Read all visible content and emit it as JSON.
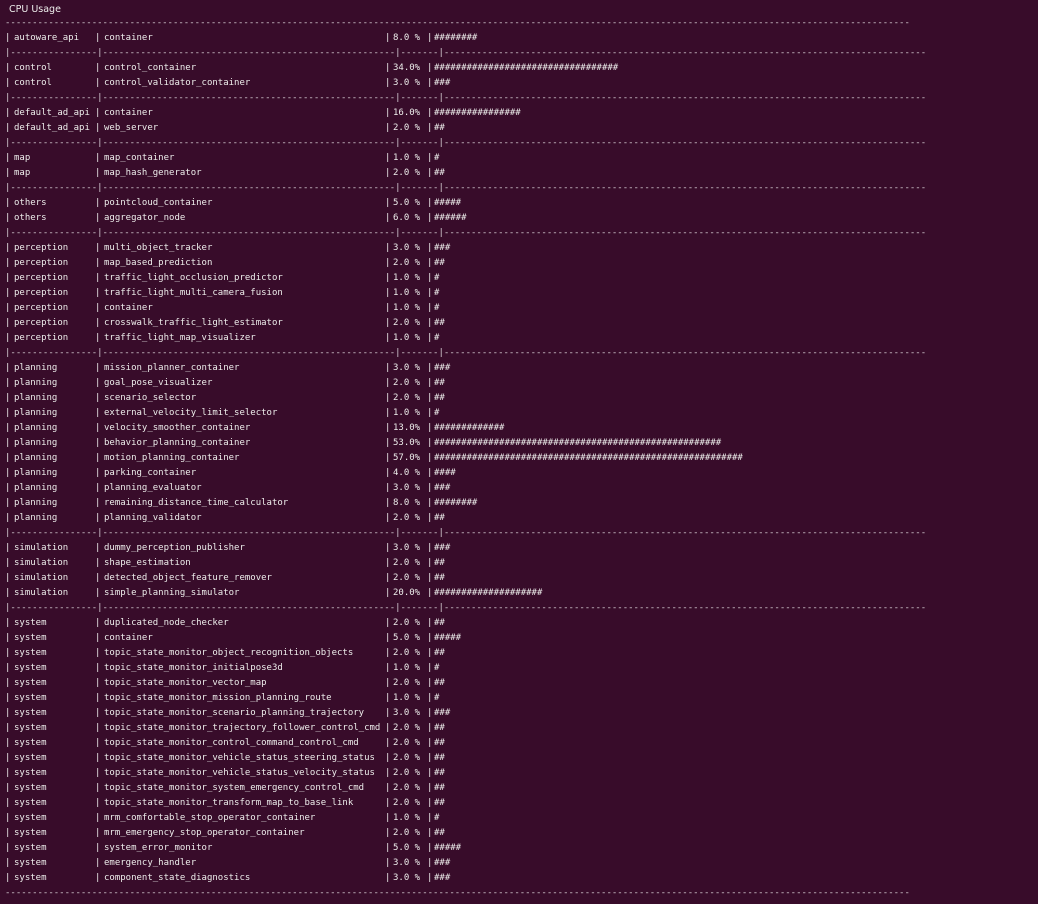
{
  "window": {
    "title": "CPU Usage"
  },
  "separator_full": "-----------------------------------------------------------------------------------------------------------------------------------------------------------------------",
  "separator_group": "|----------------|------------------------------------------------------|-------|-----------------------------------------------------------------------------------------",
  "groups": [
    {
      "rows": [
        {
          "group": "autoware_api",
          "name": "container",
          "pct": "8.0 %",
          "bar": "########"
        }
      ]
    },
    {
      "rows": [
        {
          "group": "control",
          "name": "control_container",
          "pct": "34.0%",
          "bar": "##################################"
        },
        {
          "group": "control",
          "name": "control_validator_container",
          "pct": "3.0 %",
          "bar": "###"
        }
      ]
    },
    {
      "rows": [
        {
          "group": "default_ad_api",
          "name": "container",
          "pct": "16.0%",
          "bar": "################"
        },
        {
          "group": "default_ad_api",
          "name": "web_server",
          "pct": "2.0 %",
          "bar": "##"
        }
      ]
    },
    {
      "rows": [
        {
          "group": "map",
          "name": "map_container",
          "pct": "1.0 %",
          "bar": "#"
        },
        {
          "group": "map",
          "name": "map_hash_generator",
          "pct": "2.0 %",
          "bar": "##"
        }
      ]
    },
    {
      "rows": [
        {
          "group": "others",
          "name": "pointcloud_container",
          "pct": "5.0 %",
          "bar": "#####"
        },
        {
          "group": "others",
          "name": "aggregator_node",
          "pct": "6.0 %",
          "bar": "######"
        }
      ]
    },
    {
      "rows": [
        {
          "group": "perception",
          "name": "multi_object_tracker",
          "pct": "3.0 %",
          "bar": "###"
        },
        {
          "group": "perception",
          "name": "map_based_prediction",
          "pct": "2.0 %",
          "bar": "##"
        },
        {
          "group": "perception",
          "name": "traffic_light_occlusion_predictor",
          "pct": "1.0 %",
          "bar": "#"
        },
        {
          "group": "perception",
          "name": "traffic_light_multi_camera_fusion",
          "pct": "1.0 %",
          "bar": "#"
        },
        {
          "group": "perception",
          "name": "container",
          "pct": "1.0 %",
          "bar": "#"
        },
        {
          "group": "perception",
          "name": "crosswalk_traffic_light_estimator",
          "pct": "2.0 %",
          "bar": "##"
        },
        {
          "group": "perception",
          "name": "traffic_light_map_visualizer",
          "pct": "1.0 %",
          "bar": "#"
        }
      ]
    },
    {
      "rows": [
        {
          "group": "planning",
          "name": "mission_planner_container",
          "pct": "3.0 %",
          "bar": "###"
        },
        {
          "group": "planning",
          "name": "goal_pose_visualizer",
          "pct": "2.0 %",
          "bar": "##"
        },
        {
          "group": "planning",
          "name": "scenario_selector",
          "pct": "2.0 %",
          "bar": "##"
        },
        {
          "group": "planning",
          "name": "external_velocity_limit_selector",
          "pct": "1.0 %",
          "bar": "#"
        },
        {
          "group": "planning",
          "name": "velocity_smoother_container",
          "pct": "13.0%",
          "bar": "#############"
        },
        {
          "group": "planning",
          "name": "behavior_planning_container",
          "pct": "53.0%",
          "bar": "#####################################################"
        },
        {
          "group": "planning",
          "name": "motion_planning_container",
          "pct": "57.0%",
          "bar": "#########################################################"
        },
        {
          "group": "planning",
          "name": "parking_container",
          "pct": "4.0 %",
          "bar": "####"
        },
        {
          "group": "planning",
          "name": "planning_evaluator",
          "pct": "3.0 %",
          "bar": "###"
        },
        {
          "group": "planning",
          "name": "remaining_distance_time_calculator",
          "pct": "8.0 %",
          "bar": "########"
        },
        {
          "group": "planning",
          "name": "planning_validator",
          "pct": "2.0 %",
          "bar": "##"
        }
      ]
    },
    {
      "rows": [
        {
          "group": "simulation",
          "name": "dummy_perception_publisher",
          "pct": "3.0 %",
          "bar": "###"
        },
        {
          "group": "simulation",
          "name": "shape_estimation",
          "pct": "2.0 %",
          "bar": "##"
        },
        {
          "group": "simulation",
          "name": "detected_object_feature_remover",
          "pct": "2.0 %",
          "bar": "##"
        },
        {
          "group": "simulation",
          "name": "simple_planning_simulator",
          "pct": "20.0%",
          "bar": "####################"
        }
      ]
    },
    {
      "rows": [
        {
          "group": "system",
          "name": "duplicated_node_checker",
          "pct": "2.0 %",
          "bar": "##"
        },
        {
          "group": "system",
          "name": "container",
          "pct": "5.0 %",
          "bar": "#####"
        },
        {
          "group": "system",
          "name": "topic_state_monitor_object_recognition_objects",
          "pct": "2.0 %",
          "bar": "##"
        },
        {
          "group": "system",
          "name": "topic_state_monitor_initialpose3d",
          "pct": "1.0 %",
          "bar": "#"
        },
        {
          "group": "system",
          "name": "topic_state_monitor_vector_map",
          "pct": "2.0 %",
          "bar": "##"
        },
        {
          "group": "system",
          "name": "topic_state_monitor_mission_planning_route",
          "pct": "1.0 %",
          "bar": "#"
        },
        {
          "group": "system",
          "name": "topic_state_monitor_scenario_planning_trajectory",
          "pct": "3.0 %",
          "bar": "###"
        },
        {
          "group": "system",
          "name": "topic_state_monitor_trajectory_follower_control_cmd",
          "pct": "2.0 %",
          "bar": "##"
        },
        {
          "group": "system",
          "name": "topic_state_monitor_control_command_control_cmd",
          "pct": "2.0 %",
          "bar": "##"
        },
        {
          "group": "system",
          "name": "topic_state_monitor_vehicle_status_steering_status",
          "pct": "2.0 %",
          "bar": "##"
        },
        {
          "group": "system",
          "name": "topic_state_monitor_vehicle_status_velocity_status",
          "pct": "2.0 %",
          "bar": "##"
        },
        {
          "group": "system",
          "name": "topic_state_monitor_system_emergency_control_cmd",
          "pct": "2.0 %",
          "bar": "##"
        },
        {
          "group": "system",
          "name": "topic_state_monitor_transform_map_to_base_link",
          "pct": "2.0 %",
          "bar": "##"
        },
        {
          "group": "system",
          "name": "mrm_comfortable_stop_operator_container",
          "pct": "1.0 %",
          "bar": "#"
        },
        {
          "group": "system",
          "name": "mrm_emergency_stop_operator_container",
          "pct": "2.0 %",
          "bar": "##"
        },
        {
          "group": "system",
          "name": "system_error_monitor",
          "pct": "5.0 %",
          "bar": "#####"
        },
        {
          "group": "system",
          "name": "emergency_handler",
          "pct": "3.0 %",
          "bar": "###"
        },
        {
          "group": "system",
          "name": "component_state_diagnostics",
          "pct": "3.0 %",
          "bar": "###"
        }
      ]
    }
  ]
}
